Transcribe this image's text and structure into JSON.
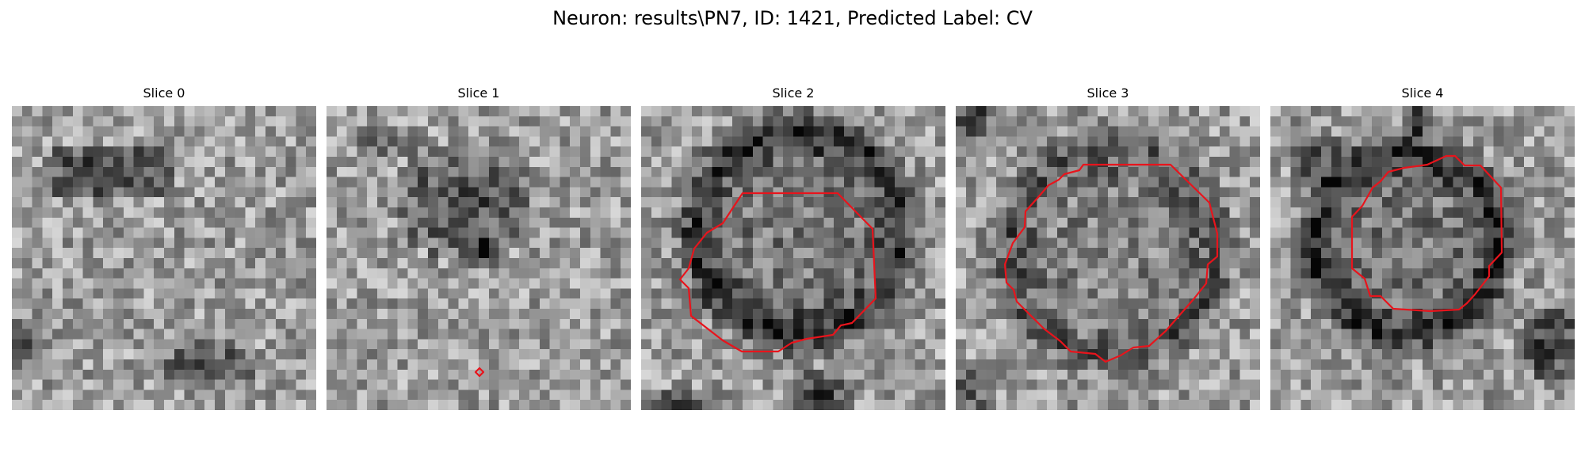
{
  "figure": {
    "suptitle": "Neuron: results\\PN7, ID: 1421, Predicted Label: CV"
  },
  "colors": {
    "contour": "#e8141c",
    "background": "#ffffff",
    "colormap": "gray"
  },
  "panels": [
    {
      "title": "Slice 0",
      "has_contour": false
    },
    {
      "title": "Slice 1",
      "has_contour": true
    },
    {
      "title": "Slice 2",
      "has_contour": true
    },
    {
      "title": "Slice 3",
      "has_contour": true
    },
    {
      "title": "Slice 4",
      "has_contour": true
    }
  ]
}
